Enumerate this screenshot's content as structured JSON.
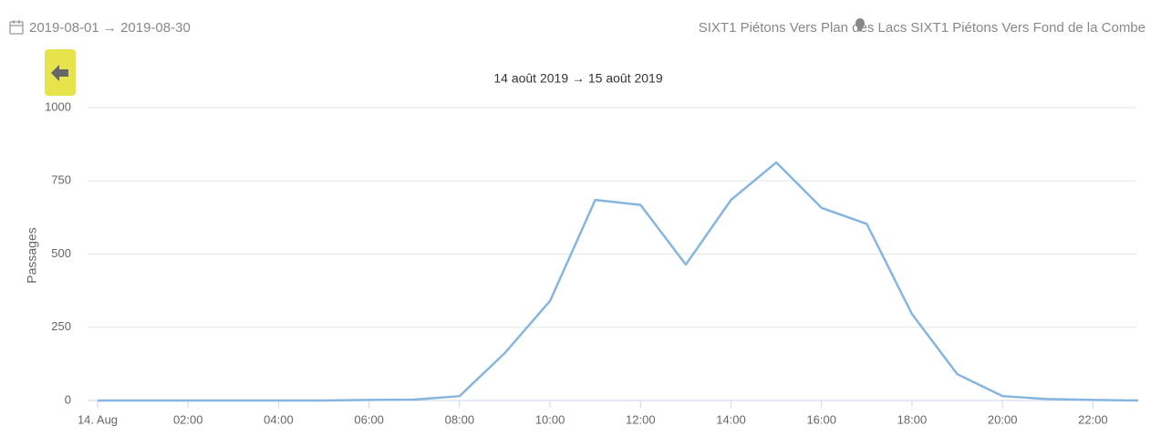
{
  "date_range": "2019-08-01 → 2019-08-30",
  "location": "SIXT1 Piétons Vers Plan des Lacs SIXT1 Piétons Vers Fond de la Combe",
  "chart_data": {
    "type": "line",
    "title": "14 août 2019 → 15 août 2019",
    "y_label": "Passages",
    "x": [
      0,
      1,
      2,
      3,
      4,
      5,
      6,
      7,
      8,
      9,
      10,
      11,
      12,
      13,
      14,
      15,
      16,
      17,
      18,
      19,
      20,
      21,
      22,
      23
    ],
    "series": [
      {
        "name": "Passages",
        "color": "#86b6e0",
        "values": [
          0,
          0,
          0,
          0,
          0,
          0,
          2,
          3,
          15,
          162,
          340,
          685,
          668,
          464,
          685,
          813,
          658,
          603,
          295,
          90,
          15,
          5,
          2,
          0
        ]
      }
    ],
    "xlim": [
      0,
      23
    ],
    "xticks": [
      {
        "value": 0,
        "label": "14. Aug"
      },
      {
        "value": 2,
        "label": "02:00"
      },
      {
        "value": 4,
        "label": "04:00"
      },
      {
        "value": 6,
        "label": "06:00"
      },
      {
        "value": 8,
        "label": "08:00"
      },
      {
        "value": 10,
        "label": "10:00"
      },
      {
        "value": 12,
        "label": "12:00"
      },
      {
        "value": 14,
        "label": "14:00"
      },
      {
        "value": 16,
        "label": "16:00"
      },
      {
        "value": 18,
        "label": "18:00"
      },
      {
        "value": 20,
        "label": "20:00"
      },
      {
        "value": 22,
        "label": "22:00"
      }
    ],
    "ylim": [
      0,
      1000
    ],
    "yticks": [
      0,
      250,
      500,
      750,
      1000
    ],
    "grid": true
  }
}
